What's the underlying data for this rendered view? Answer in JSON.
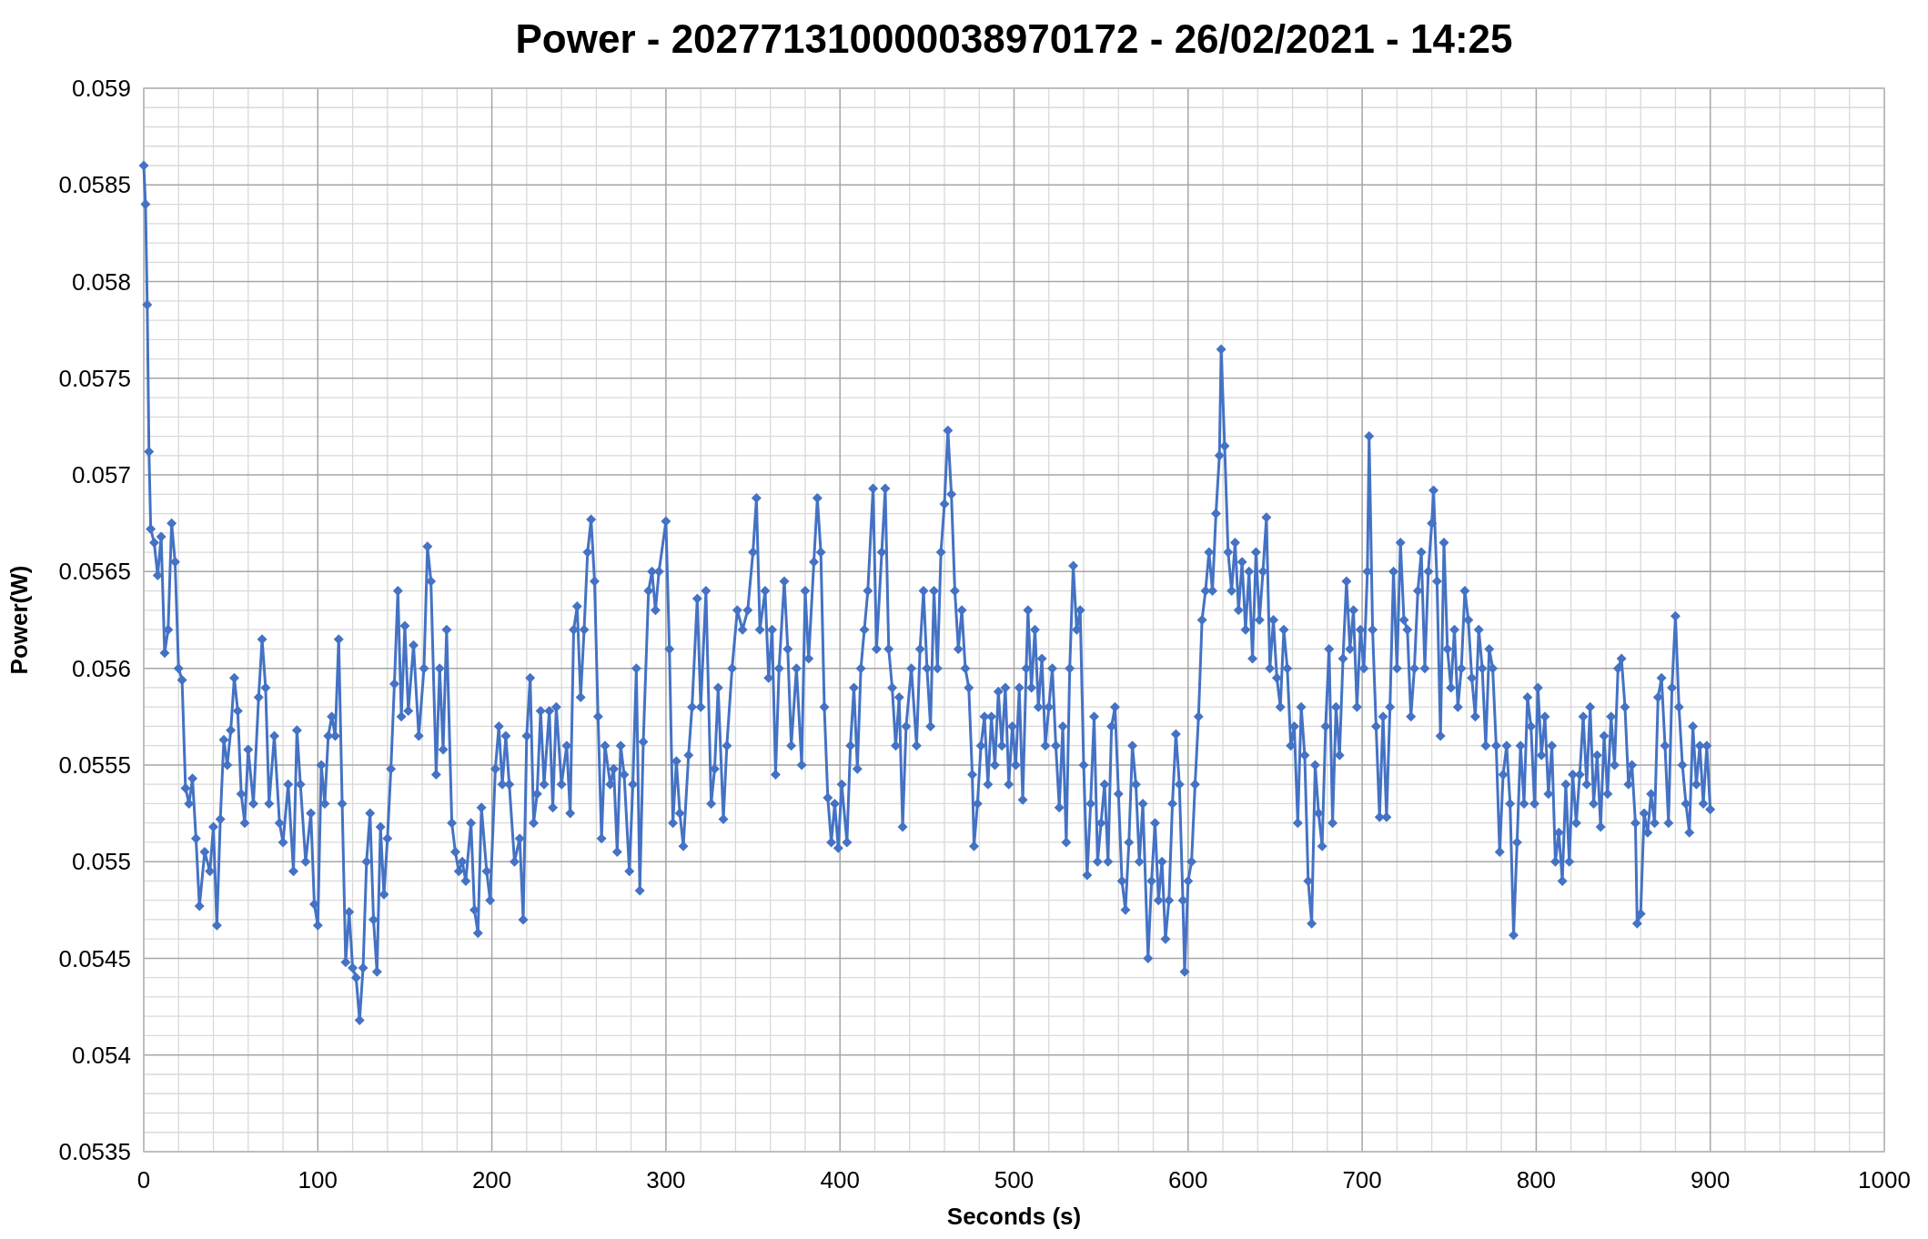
{
  "chart_data": {
    "type": "line",
    "title": "Power - 202771310000038970172 - 26/02/2021 - 14:25",
    "xlabel": "Seconds (s)",
    "ylabel": "Power(W)",
    "marker": "diamond",
    "line_style": "solid",
    "grid": true,
    "xlim": [
      0,
      1000
    ],
    "xticks": [
      0,
      100,
      200,
      300,
      400,
      500,
      600,
      700,
      800,
      900,
      1000
    ],
    "ylim": [
      0.0535,
      0.059
    ],
    "yticks": [
      0.0535,
      0.054,
      0.0545,
      0.055,
      0.0555,
      0.056,
      0.0565,
      0.057,
      0.0575,
      0.058,
      0.0585,
      0.059
    ],
    "series": [
      {
        "color": "#4472c4",
        "x": [
          0,
          1,
          2,
          3,
          4,
          6,
          8,
          10,
          12,
          14,
          16,
          18,
          20,
          22,
          24,
          26,
          28,
          30,
          32,
          35,
          38,
          40,
          42,
          44,
          46,
          48,
          50,
          52,
          54,
          56,
          58,
          60,
          63,
          66,
          68,
          70,
          72,
          75,
          78,
          80,
          83,
          86,
          88,
          90,
          93,
          96,
          98,
          100,
          102,
          104,
          106,
          108,
          110,
          112,
          114,
          116,
          118,
          120,
          122,
          124,
          126,
          128,
          130,
          132,
          134,
          136,
          138,
          140,
          142,
          144,
          146,
          148,
          150,
          152,
          155,
          158,
          161,
          163,
          165,
          168,
          170,
          172,
          174,
          177,
          179,
          181,
          183,
          185,
          188,
          190,
          192,
          194,
          197,
          199,
          202,
          204,
          206,
          208,
          210,
          213,
          216,
          218,
          220,
          222,
          224,
          226,
          228,
          230,
          233,
          235,
          237,
          240,
          243,
          245,
          247,
          249,
          251,
          253,
          255,
          257,
          259,
          261,
          263,
          265,
          268,
          270,
          272,
          274,
          276,
          279,
          281,
          283,
          285,
          287,
          290,
          292,
          294,
          296,
          300,
          302,
          304,
          306,
          308,
          310,
          313,
          315,
          318,
          320,
          323,
          326,
          328,
          330,
          333,
          335,
          338,
          341,
          344,
          347,
          350,
          352,
          354,
          357,
          359,
          361,
          363,
          365,
          368,
          370,
          372,
          375,
          378,
          380,
          382,
          385,
          387,
          389,
          391,
          393,
          395,
          397,
          399,
          401,
          404,
          406,
          408,
          410,
          412,
          414,
          416,
          419,
          421,
          424,
          426,
          428,
          430,
          432,
          434,
          436,
          438,
          441,
          444,
          446,
          448,
          450,
          452,
          454,
          456,
          458,
          460,
          462,
          464,
          466,
          468,
          470,
          472,
          474,
          476,
          477,
          479,
          481,
          483,
          485,
          487,
          489,
          491,
          493,
          495,
          497,
          499,
          501,
          503,
          505,
          507,
          508,
          510,
          512,
          514,
          516,
          518,
          520,
          522,
          524,
          526,
          528,
          530,
          532,
          534,
          536,
          538,
          540,
          542,
          544,
          546,
          548,
          550,
          552,
          554,
          556,
          558,
          560,
          562,
          564,
          566,
          568,
          570,
          572,
          574,
          577,
          579,
          581,
          583,
          585,
          587,
          589,
          591,
          593,
          595,
          597,
          598,
          600,
          602,
          604,
          606,
          608,
          610,
          612,
          614,
          616,
          618,
          619,
          621,
          623,
          625,
          627,
          629,
          631,
          633,
          635,
          637,
          639,
          641,
          643,
          645,
          647,
          649,
          651,
          653,
          655,
          657,
          659,
          661,
          663,
          665,
          667,
          669,
          671,
          673,
          675,
          677,
          679,
          681,
          683,
          685,
          687,
          689,
          691,
          693,
          695,
          697,
          699,
          701,
          703,
          704,
          706,
          708,
          710,
          712,
          714,
          716,
          718,
          720,
          722,
          724,
          726,
          728,
          730,
          732,
          734,
          736,
          738,
          740,
          741,
          743,
          745,
          747,
          749,
          751,
          753,
          755,
          757,
          759,
          761,
          763,
          765,
          767,
          769,
          771,
          773,
          775,
          777,
          779,
          781,
          783,
          785,
          787,
          789,
          791,
          793,
          795,
          797,
          799,
          801,
          803,
          805,
          807,
          809,
          811,
          813,
          815,
          817,
          819,
          821,
          823,
          825,
          827,
          829,
          831,
          833,
          835,
          837,
          839,
          841,
          843,
          845,
          847,
          849,
          851,
          853,
          855,
          857,
          858,
          860,
          862,
          864,
          866,
          868,
          870,
          872,
          874,
          876,
          878,
          880,
          882,
          884,
          886,
          888,
          890,
          892,
          894,
          896,
          898,
          900
        ],
        "values": [
          0.0586,
          0.0584,
          0.05788,
          0.05712,
          0.05672,
          0.05665,
          0.05648,
          0.05668,
          0.05608,
          0.0562,
          0.05675,
          0.05655,
          0.056,
          0.05594,
          0.05538,
          0.0553,
          0.05543,
          0.05512,
          0.05477,
          0.05505,
          0.05495,
          0.05518,
          0.05467,
          0.05522,
          0.05563,
          0.0555,
          0.05568,
          0.05595,
          0.05578,
          0.05535,
          0.0552,
          0.05558,
          0.0553,
          0.05585,
          0.05615,
          0.0559,
          0.0553,
          0.05565,
          0.0552,
          0.0551,
          0.0554,
          0.05495,
          0.05568,
          0.0554,
          0.055,
          0.05525,
          0.05478,
          0.05467,
          0.0555,
          0.0553,
          0.05565,
          0.05575,
          0.05565,
          0.05615,
          0.0553,
          0.05448,
          0.05474,
          0.05445,
          0.0544,
          0.05418,
          0.05445,
          0.055,
          0.05525,
          0.0547,
          0.05443,
          0.05518,
          0.05483,
          0.05512,
          0.05548,
          0.05592,
          0.0564,
          0.05575,
          0.05622,
          0.05578,
          0.05612,
          0.05565,
          0.056,
          0.05663,
          0.05645,
          0.05545,
          0.056,
          0.05558,
          0.0562,
          0.0552,
          0.05505,
          0.05495,
          0.055,
          0.0549,
          0.0552,
          0.05475,
          0.05463,
          0.05528,
          0.05495,
          0.0548,
          0.05548,
          0.0557,
          0.0554,
          0.05565,
          0.0554,
          0.055,
          0.05512,
          0.0547,
          0.05565,
          0.05595,
          0.0552,
          0.05535,
          0.05578,
          0.0554,
          0.05578,
          0.05528,
          0.0558,
          0.0554,
          0.0556,
          0.05525,
          0.0562,
          0.05632,
          0.05585,
          0.0562,
          0.0566,
          0.05677,
          0.05645,
          0.05575,
          0.05512,
          0.0556,
          0.0554,
          0.05548,
          0.05505,
          0.0556,
          0.05545,
          0.05495,
          0.0554,
          0.056,
          0.05485,
          0.05562,
          0.0564,
          0.0565,
          0.0563,
          0.0565,
          0.05676,
          0.0561,
          0.0552,
          0.05552,
          0.05525,
          0.05508,
          0.05555,
          0.0558,
          0.05636,
          0.0558,
          0.0564,
          0.0553,
          0.05548,
          0.0559,
          0.05522,
          0.0556,
          0.056,
          0.0563,
          0.0562,
          0.0563,
          0.0566,
          0.05688,
          0.0562,
          0.0564,
          0.05595,
          0.0562,
          0.05545,
          0.056,
          0.05645,
          0.0561,
          0.0556,
          0.056,
          0.0555,
          0.0564,
          0.05605,
          0.05655,
          0.05688,
          0.0566,
          0.0558,
          0.05533,
          0.0551,
          0.0553,
          0.05507,
          0.0554,
          0.0551,
          0.0556,
          0.0559,
          0.05548,
          0.056,
          0.0562,
          0.0564,
          0.05693,
          0.0561,
          0.0566,
          0.05693,
          0.0561,
          0.0559,
          0.0556,
          0.05585,
          0.05518,
          0.0557,
          0.056,
          0.0556,
          0.0561,
          0.0564,
          0.056,
          0.0557,
          0.0564,
          0.056,
          0.0566,
          0.05685,
          0.05723,
          0.0569,
          0.0564,
          0.0561,
          0.0563,
          0.056,
          0.0559,
          0.05545,
          0.05508,
          0.0553,
          0.0556,
          0.05575,
          0.0554,
          0.05575,
          0.0555,
          0.05588,
          0.0556,
          0.0559,
          0.0554,
          0.0557,
          0.0555,
          0.0559,
          0.05532,
          0.056,
          0.0563,
          0.0559,
          0.0562,
          0.0558,
          0.05605,
          0.0556,
          0.0558,
          0.056,
          0.0556,
          0.05528,
          0.0557,
          0.0551,
          0.056,
          0.05653,
          0.0562,
          0.0563,
          0.0555,
          0.05493,
          0.0553,
          0.05575,
          0.055,
          0.0552,
          0.0554,
          0.055,
          0.0557,
          0.0558,
          0.05535,
          0.0549,
          0.05475,
          0.0551,
          0.0556,
          0.0554,
          0.055,
          0.0553,
          0.0545,
          0.0549,
          0.0552,
          0.0548,
          0.055,
          0.0546,
          0.0548,
          0.0553,
          0.05566,
          0.0554,
          0.0548,
          0.05443,
          0.0549,
          0.055,
          0.0554,
          0.05575,
          0.05625,
          0.0564,
          0.0566,
          0.0564,
          0.0568,
          0.0571,
          0.05765,
          0.05715,
          0.0566,
          0.0564,
          0.05665,
          0.0563,
          0.05655,
          0.0562,
          0.0565,
          0.05605,
          0.0566,
          0.05625,
          0.0565,
          0.05678,
          0.056,
          0.05625,
          0.05595,
          0.0558,
          0.0562,
          0.056,
          0.0556,
          0.0557,
          0.0552,
          0.0558,
          0.05555,
          0.0549,
          0.05468,
          0.0555,
          0.05525,
          0.05508,
          0.0557,
          0.0561,
          0.0552,
          0.0558,
          0.05555,
          0.05605,
          0.05645,
          0.0561,
          0.0563,
          0.0558,
          0.0562,
          0.056,
          0.0565,
          0.0572,
          0.0562,
          0.0557,
          0.05523,
          0.05575,
          0.05523,
          0.0558,
          0.0565,
          0.056,
          0.05665,
          0.05625,
          0.0562,
          0.05575,
          0.056,
          0.0564,
          0.0566,
          0.056,
          0.0565,
          0.05675,
          0.05692,
          0.05645,
          0.05565,
          0.05665,
          0.0561,
          0.0559,
          0.0562,
          0.0558,
          0.056,
          0.0564,
          0.05625,
          0.05595,
          0.05575,
          0.0562,
          0.056,
          0.0556,
          0.0561,
          0.056,
          0.0556,
          0.05505,
          0.05545,
          0.0556,
          0.0553,
          0.05462,
          0.0551,
          0.0556,
          0.0553,
          0.05585,
          0.0557,
          0.0553,
          0.0559,
          0.05555,
          0.05575,
          0.05535,
          0.0556,
          0.055,
          0.05515,
          0.0549,
          0.0554,
          0.055,
          0.05545,
          0.0552,
          0.05545,
          0.05575,
          0.0554,
          0.0558,
          0.0553,
          0.05555,
          0.05518,
          0.05565,
          0.05535,
          0.05575,
          0.0555,
          0.056,
          0.05605,
          0.0558,
          0.0554,
          0.0555,
          0.0552,
          0.05468,
          0.05473,
          0.05525,
          0.05515,
          0.05535,
          0.0552,
          0.05585,
          0.05595,
          0.0556,
          0.0552,
          0.0559,
          0.05627,
          0.0558,
          0.0555,
          0.0553,
          0.05515,
          0.0557,
          0.0554,
          0.0556,
          0.0553,
          0.0556,
          0.05527
        ]
      }
    ]
  }
}
